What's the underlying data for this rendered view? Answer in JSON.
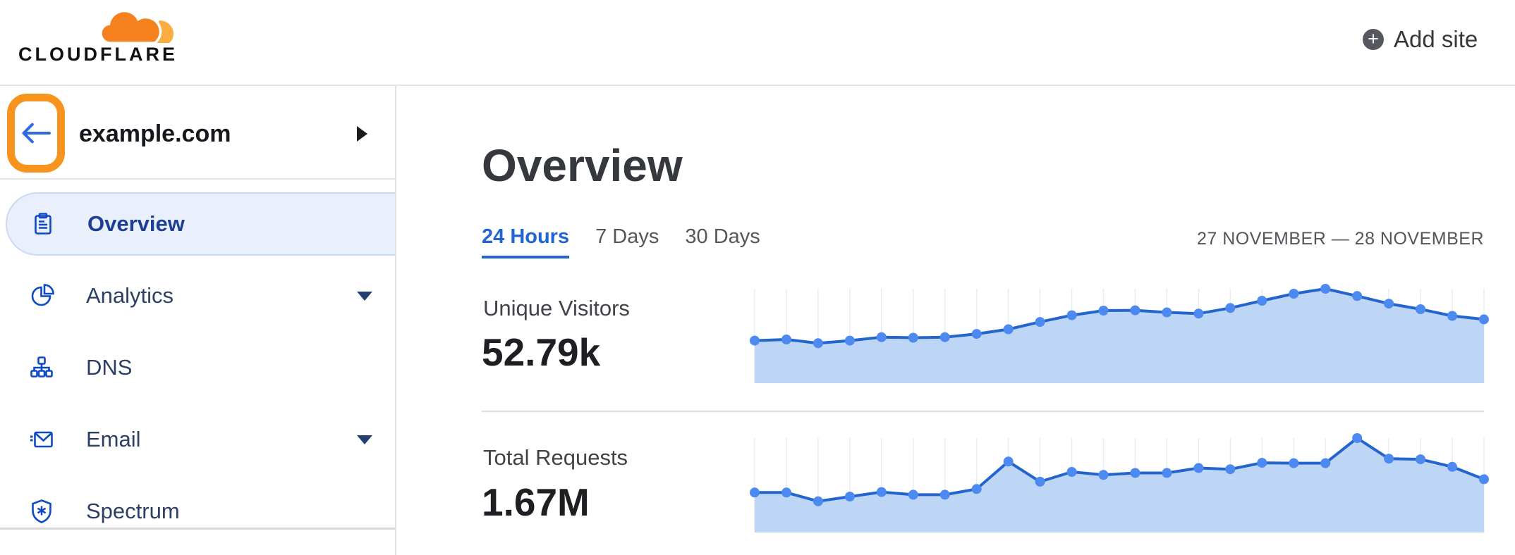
{
  "topbar": {
    "brand": "CLOUDFLARE",
    "add_site_label": "Add site"
  },
  "sidebar": {
    "site_name": "example.com",
    "annotation": {
      "type": "highlight-box",
      "target": "back-button",
      "color": "#f7941e"
    },
    "items": [
      {
        "label": "Overview",
        "icon": "clipboard-icon",
        "selected": true,
        "has_caret": false
      },
      {
        "label": "Analytics",
        "icon": "pie-chart-icon",
        "selected": false,
        "has_caret": true
      },
      {
        "label": "DNS",
        "icon": "dns-tree-icon",
        "selected": false,
        "has_caret": false
      },
      {
        "label": "Email",
        "icon": "email-icon",
        "selected": false,
        "has_caret": true
      },
      {
        "label": "Spectrum",
        "icon": "shield-spectrum-icon",
        "selected": false,
        "has_caret": false
      }
    ]
  },
  "main": {
    "title": "Overview",
    "tabs": [
      {
        "label": "24 Hours",
        "active": true
      },
      {
        "label": "7 Days",
        "active": false
      },
      {
        "label": "30 Days",
        "active": false
      }
    ],
    "date_range": "27 NOVEMBER — 28 NOVEMBER",
    "metrics": [
      {
        "label": "Unique Visitors",
        "value": "52.79k"
      },
      {
        "label": "Total Requests",
        "value": "1.67M"
      }
    ]
  },
  "colors": {
    "accent_orange": "#f6821f",
    "logo_light_orange": "#fbad41",
    "annotation_orange": "#f7941e",
    "link_blue": "#2264d1",
    "icon_blue": "#0d4ac4",
    "nav_text": "#2d3f63",
    "selected_text": "#1c3f94",
    "selected_bg": "#e9f0fb",
    "border_gray": "#e2e3e6",
    "chart_line": "#2365cd",
    "chart_dot": "#4c89f1",
    "chart_fill": "#bdd6f6",
    "chart_grid": "#e9ecf3"
  },
  "chart_data": [
    {
      "type": "area",
      "title": "Unique Visitors",
      "total_shown": "52.79k",
      "period": "24 Hours",
      "x_description": "24 hourly points, 27 November — 28 November (x tick labels not shown)",
      "values": [
        1460,
        1500,
        1370,
        1460,
        1580,
        1560,
        1580,
        1690,
        1850,
        2100,
        2330,
        2490,
        2500,
        2430,
        2390,
        2580,
        2830,
        3070,
        3240,
        2990,
        2730,
        2540,
        2310,
        2190
      ],
      "ylim": [
        0,
        3240
      ],
      "grid": "vertical-per-point",
      "legend": "none"
    },
    {
      "type": "area",
      "title": "Total Requests",
      "total_shown": "1.67M",
      "period": "24 Hours",
      "x_description": "24 hourly points, 27 November — 28 November (x tick labels not shown)",
      "values": [
        49000,
        49000,
        38300,
        44000,
        49600,
        46300,
        46300,
        53300,
        87000,
        62300,
        74300,
        70600,
        73000,
        73000,
        79100,
        77600,
        85500,
        85000,
        85000,
        115800,
        90600,
        89800,
        80500,
        65300
      ],
      "ylim": [
        0,
        115800
      ],
      "grid": "vertical-per-point",
      "legend": "none"
    }
  ]
}
